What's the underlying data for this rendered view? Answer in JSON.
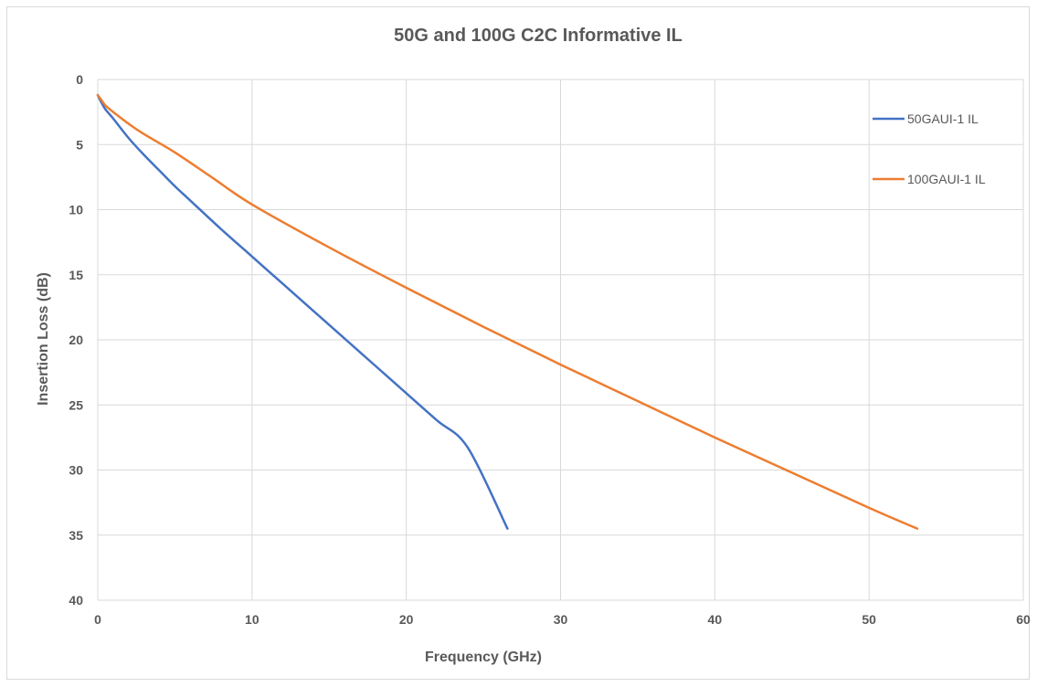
{
  "chart_data": {
    "type": "line",
    "title": "50G and 100G C2C Informative IL",
    "xlabel": "Frequency (GHz)",
    "ylabel": "Insertion Loss (dB)",
    "xlim": [
      0,
      60
    ],
    "ylim": [
      0,
      40
    ],
    "y_inverted": true,
    "x_ticks": [
      0,
      10,
      20,
      30,
      40,
      50,
      60
    ],
    "y_ticks": [
      0,
      5,
      10,
      15,
      20,
      25,
      30,
      35,
      40
    ],
    "grid": true,
    "legend_position": "right",
    "series": [
      {
        "name": "50GAUI-1 IL",
        "color": "#4472c4",
        "x": [
          0,
          0.25,
          0.5,
          1,
          2,
          3,
          4,
          5,
          6,
          8,
          10,
          12,
          14,
          16,
          18,
          20,
          22,
          24,
          26.56
        ],
        "y": [
          1.2,
          1.8,
          2.3,
          3.0,
          4.5,
          5.8,
          7.0,
          8.2,
          9.3,
          11.5,
          13.6,
          15.7,
          17.8,
          19.9,
          22.0,
          24.1,
          26.2,
          28.3,
          34.5
        ]
      },
      {
        "name": "100GAUI-1 IL",
        "color": "#ed7d31",
        "x": [
          0,
          0.25,
          0.5,
          1,
          2,
          3,
          5,
          7.5,
          10,
          15,
          20,
          25,
          30,
          35,
          40,
          45,
          50,
          53.125
        ],
        "y": [
          1.2,
          1.6,
          2.0,
          2.5,
          3.4,
          4.2,
          5.6,
          7.6,
          9.6,
          12.9,
          16.0,
          19.0,
          21.9,
          24.7,
          27.5,
          30.2,
          32.9,
          34.5
        ]
      }
    ]
  }
}
